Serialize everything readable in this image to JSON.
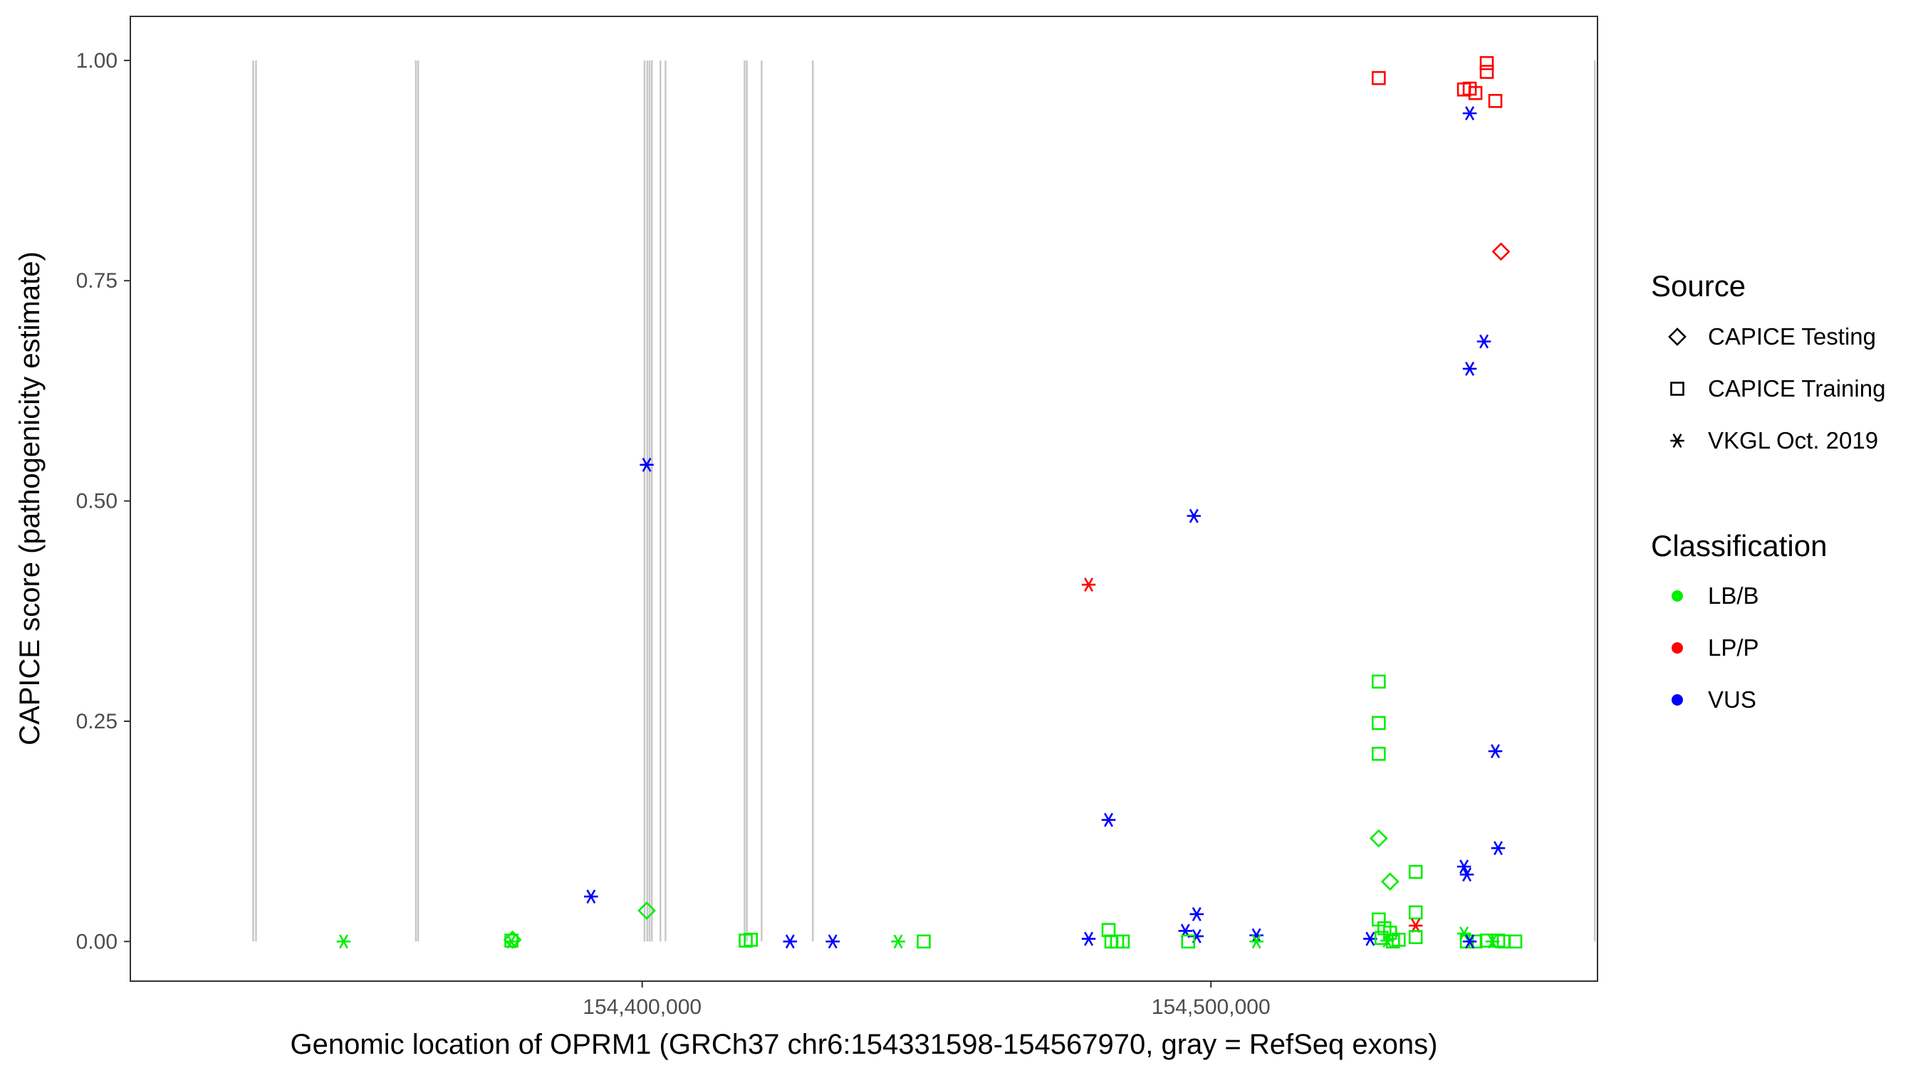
{
  "chart_data": {
    "type": "scatter",
    "title": "",
    "xlabel": "Genomic location of OPRM1 (GRCh37 chr6:154331598-154567970, gray = RefSeq exons)",
    "ylabel": "CAPICE score (pathogenicity estimate)",
    "xlim": [
      154310000,
      154567970
    ],
    "ylim": [
      -0.045,
      1.05
    ],
    "x_ticks": [
      154400000,
      154500000
    ],
    "x_tick_labels": [
      "154,400,000",
      "154,500,000"
    ],
    "y_ticks": [
      0.0,
      0.25,
      0.5,
      0.75,
      1.0
    ],
    "y_tick_labels": [
      "0.00",
      "0.25",
      "0.50",
      "0.75",
      "1.00"
    ],
    "grid": false,
    "exons": [
      154331600,
      154332100,
      154360200,
      154360600,
      154400400,
      154400900,
      154401300,
      154401700,
      154403200,
      154404100,
      154418000,
      154418400,
      154421000,
      154430000,
      154567500
    ],
    "legend_source": {
      "title": "Source",
      "entries": [
        {
          "label": "CAPICE Testing",
          "shape": "diamond"
        },
        {
          "label": "CAPICE Training",
          "shape": "square"
        },
        {
          "label": "VKGL Oct. 2019",
          "shape": "asterisk"
        }
      ]
    },
    "legend_classification": {
      "title": "Classification",
      "entries": [
        {
          "label": "LB/B",
          "color": "#00ee00"
        },
        {
          "label": "LP/P",
          "color": "#ff0000"
        },
        {
          "label": "VUS",
          "color": "#0000ff"
        }
      ]
    },
    "points": [
      {
        "x": 154347500,
        "y": 0.0,
        "source": "VKGL Oct. 2019",
        "cls": "LB/B"
      },
      {
        "x": 154377000,
        "y": 0.0,
        "source": "VKGL Oct. 2019",
        "cls": "LB/B"
      },
      {
        "x": 154377000,
        "y": 0.001,
        "source": "CAPICE Training",
        "cls": "LB/B"
      },
      {
        "x": 154377200,
        "y": 0.002,
        "source": "CAPICE Testing",
        "cls": "LB/B"
      },
      {
        "x": 154391000,
        "y": 0.051,
        "source": "VKGL Oct. 2019",
        "cls": "VUS"
      },
      {
        "x": 154400800,
        "y": 0.541,
        "source": "VKGL Oct. 2019",
        "cls": "VUS"
      },
      {
        "x": 154400800,
        "y": 0.035,
        "source": "CAPICE Testing",
        "cls": "LB/B"
      },
      {
        "x": 154418200,
        "y": 0.001,
        "source": "CAPICE Training",
        "cls": "LB/B"
      },
      {
        "x": 154419100,
        "y": 0.002,
        "source": "CAPICE Training",
        "cls": "LB/B"
      },
      {
        "x": 154426000,
        "y": 0.0,
        "source": "VKGL Oct. 2019",
        "cls": "VUS"
      },
      {
        "x": 154433500,
        "y": 0.0,
        "source": "VKGL Oct. 2019",
        "cls": "VUS"
      },
      {
        "x": 154445000,
        "y": 0.0,
        "source": "VKGL Oct. 2019",
        "cls": "LB/B"
      },
      {
        "x": 154449500,
        "y": 0.0,
        "source": "CAPICE Training",
        "cls": "LB/B"
      },
      {
        "x": 154482500,
        "y": 0.0,
        "source": "CAPICE Training",
        "cls": "LB/B"
      },
      {
        "x": 154483500,
        "y": 0.0,
        "source": "CAPICE Training",
        "cls": "LB/B"
      },
      {
        "x": 154484500,
        "y": 0.0,
        "source": "CAPICE Training",
        "cls": "LB/B"
      },
      {
        "x": 154478500,
        "y": 0.405,
        "source": "VKGL Oct. 2019",
        "cls": "LP/P"
      },
      {
        "x": 154478500,
        "y": 0.003,
        "source": "VKGL Oct. 2019",
        "cls": "VUS"
      },
      {
        "x": 154482000,
        "y": 0.138,
        "source": "VKGL Oct. 2019",
        "cls": "VUS"
      },
      {
        "x": 154482000,
        "y": 0.013,
        "source": "CAPICE Training",
        "cls": "LB/B"
      },
      {
        "x": 154497000,
        "y": 0.483,
        "source": "VKGL Oct. 2019",
        "cls": "VUS"
      },
      {
        "x": 154495500,
        "y": 0.012,
        "source": "VKGL Oct. 2019",
        "cls": "VUS"
      },
      {
        "x": 154497500,
        "y": 0.031,
        "source": "VKGL Oct. 2019",
        "cls": "VUS"
      },
      {
        "x": 154497500,
        "y": 0.006,
        "source": "VKGL Oct. 2019",
        "cls": "VUS"
      },
      {
        "x": 154496000,
        "y": 0.0,
        "source": "CAPICE Training",
        "cls": "LB/B"
      },
      {
        "x": 154508000,
        "y": 0.007,
        "source": "VKGL Oct. 2019",
        "cls": "VUS"
      },
      {
        "x": 154508000,
        "y": 0.0,
        "source": "VKGL Oct. 2019",
        "cls": "LB/B"
      },
      {
        "x": 154528000,
        "y": 0.003,
        "source": "VKGL Oct. 2019",
        "cls": "VUS"
      },
      {
        "x": 154529500,
        "y": 0.98,
        "source": "CAPICE Training",
        "cls": "LP/P"
      },
      {
        "x": 154529500,
        "y": 0.295,
        "source": "CAPICE Training",
        "cls": "LB/B"
      },
      {
        "x": 154529500,
        "y": 0.248,
        "source": "CAPICE Training",
        "cls": "LB/B"
      },
      {
        "x": 154529500,
        "y": 0.213,
        "source": "CAPICE Training",
        "cls": "LB/B"
      },
      {
        "x": 154529500,
        "y": 0.117,
        "source": "CAPICE Testing",
        "cls": "LB/B"
      },
      {
        "x": 154531500,
        "y": 0.068,
        "source": "CAPICE Testing",
        "cls": "LB/B"
      },
      {
        "x": 154529500,
        "y": 0.025,
        "source": "CAPICE Training",
        "cls": "LB/B"
      },
      {
        "x": 154530500,
        "y": 0.015,
        "source": "CAPICE Training",
        "cls": "LB/B"
      },
      {
        "x": 154531500,
        "y": 0.01,
        "source": "CAPICE Training",
        "cls": "LB/B"
      },
      {
        "x": 154530000,
        "y": 0.004,
        "source": "CAPICE Training",
        "cls": "LB/B"
      },
      {
        "x": 154531000,
        "y": 0.001,
        "source": "VKGL Oct. 2019",
        "cls": "LB/B"
      },
      {
        "x": 154532000,
        "y": 0.0,
        "source": "CAPICE Training",
        "cls": "LB/B"
      },
      {
        "x": 154533000,
        "y": 0.002,
        "source": "CAPICE Training",
        "cls": "LB/B"
      },
      {
        "x": 154536000,
        "y": 0.079,
        "source": "CAPICE Training",
        "cls": "LB/B"
      },
      {
        "x": 154536000,
        "y": 0.033,
        "source": "CAPICE Training",
        "cls": "LB/B"
      },
      {
        "x": 154536000,
        "y": 0.018,
        "source": "VKGL Oct. 2019",
        "cls": "LP/P"
      },
      {
        "x": 154536000,
        "y": 0.005,
        "source": "CAPICE Training",
        "cls": "LB/B"
      },
      {
        "x": 154545000,
        "y": 0.0,
        "source": "CAPICE Training",
        "cls": "LB/B"
      },
      {
        "x": 154546500,
        "y": 0.0,
        "source": "CAPICE Training",
        "cls": "LB/B"
      },
      {
        "x": 154544500,
        "y": 0.967,
        "source": "CAPICE Training",
        "cls": "LP/P"
      },
      {
        "x": 154545500,
        "y": 0.968,
        "source": "CAPICE Training",
        "cls": "LP/P"
      },
      {
        "x": 154546500,
        "y": 0.963,
        "source": "CAPICE Training",
        "cls": "LP/P"
      },
      {
        "x": 154548500,
        "y": 0.997,
        "source": "CAPICE Training",
        "cls": "LP/P"
      },
      {
        "x": 154548500,
        "y": 0.987,
        "source": "CAPICE Training",
        "cls": "LP/P"
      },
      {
        "x": 154550000,
        "y": 0.954,
        "source": "CAPICE Training",
        "cls": "LP/P"
      },
      {
        "x": 154545500,
        "y": 0.94,
        "source": "VKGL Oct. 2019",
        "cls": "VUS"
      },
      {
        "x": 154551000,
        "y": 0.783,
        "source": "CAPICE Testing",
        "cls": "LP/P"
      },
      {
        "x": 154548000,
        "y": 0.681,
        "source": "VKGL Oct. 2019",
        "cls": "VUS"
      },
      {
        "x": 154545500,
        "y": 0.65,
        "source": "VKGL Oct. 2019",
        "cls": "VUS"
      },
      {
        "x": 154550000,
        "y": 0.216,
        "source": "VKGL Oct. 2019",
        "cls": "VUS"
      },
      {
        "x": 154550500,
        "y": 0.106,
        "source": "VKGL Oct. 2019",
        "cls": "VUS"
      },
      {
        "x": 154544500,
        "y": 0.085,
        "source": "VKGL Oct. 2019",
        "cls": "VUS"
      },
      {
        "x": 154545000,
        "y": 0.076,
        "source": "VKGL Oct. 2019",
        "cls": "VUS"
      },
      {
        "x": 154544500,
        "y": 0.009,
        "source": "VKGL Oct. 2019",
        "cls": "LB/B"
      },
      {
        "x": 154545500,
        "y": 0.0,
        "source": "VKGL Oct. 2019",
        "cls": "VUS"
      },
      {
        "x": 154548500,
        "y": 0.001,
        "source": "CAPICE Training",
        "cls": "LB/B"
      },
      {
        "x": 154549500,
        "y": 0.0,
        "source": "VKGL Oct. 2019",
        "cls": "LB/B"
      },
      {
        "x": 154550500,
        "y": 0.001,
        "source": "CAPICE Training",
        "cls": "LB/B"
      },
      {
        "x": 154551500,
        "y": 0.0,
        "source": "CAPICE Training",
        "cls": "LB/B"
      },
      {
        "x": 154553500,
        "y": 0.0,
        "source": "CAPICE Training",
        "cls": "LB/B"
      }
    ]
  }
}
